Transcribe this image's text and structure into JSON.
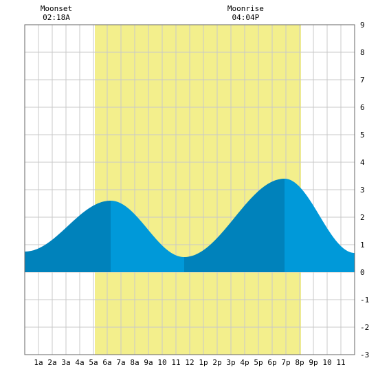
{
  "chart_data": {
    "type": "area",
    "title": "",
    "xlabel": "",
    "ylabel": "",
    "xlim": [
      0,
      24
    ],
    "ylim": [
      -3,
      9
    ],
    "y_ticks": [
      -3,
      -2,
      -1,
      0,
      1,
      2,
      3,
      4,
      5,
      6,
      7,
      8,
      9
    ],
    "x_tick_labels": [
      "1a",
      "2a",
      "3a",
      "4a",
      "5a",
      "6a",
      "7a",
      "8a",
      "9a",
      "10",
      "11",
      "12",
      "1p",
      "2p",
      "3p",
      "4p",
      "5p",
      "6p",
      "7p",
      "8p",
      "9p",
      "10",
      "11"
    ],
    "grid": true,
    "daylight": {
      "start_hour": 5.1,
      "end_hour": 20.1,
      "color": "#f3ef8c"
    },
    "moon_events": [
      {
        "label": "Moonset",
        "time": "02:18A",
        "hour": 2.3
      },
      {
        "label": "Moonrise",
        "time": "04:04P",
        "hour": 16.07
      }
    ],
    "tide_extremes": [
      {
        "hour": 0.0,
        "height": 0.75,
        "type": "low"
      },
      {
        "hour": 6.25,
        "height": 2.6,
        "type": "high"
      },
      {
        "hour": 11.6,
        "height": 0.55,
        "type": "low"
      },
      {
        "hour": 18.9,
        "height": 3.4,
        "type": "high"
      },
      {
        "hour": 24.0,
        "height": 0.7,
        "type": "low"
      }
    ],
    "colors": {
      "rising": "#0082bb",
      "falling": "#0099d9",
      "grid": "#c8c8c8",
      "border": "#666666"
    }
  }
}
